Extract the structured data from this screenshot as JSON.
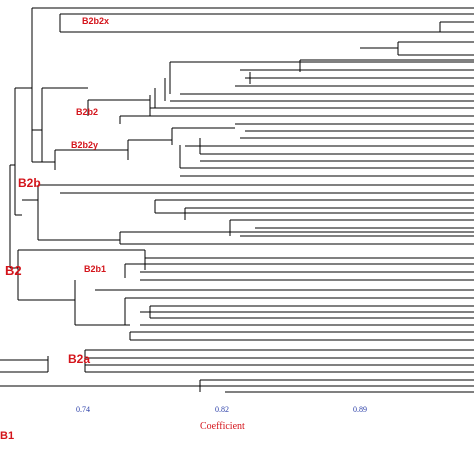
{
  "cluster_labels": {
    "b2b2x": "B2b2x",
    "b2b2": "B2b2",
    "b2b2y": "B2b2y",
    "b2b": "B2b",
    "b2": "B2",
    "b2b1": "B2b1",
    "b2a": "B2a",
    "b1": "B1"
  },
  "axis": {
    "title": "Coefficient",
    "ticks": [
      "0.74",
      "0.82",
      "0.89"
    ]
  },
  "colors": {
    "branch": "#000000",
    "label": "#d4141b",
    "tick": "#2b3fa8"
  }
}
